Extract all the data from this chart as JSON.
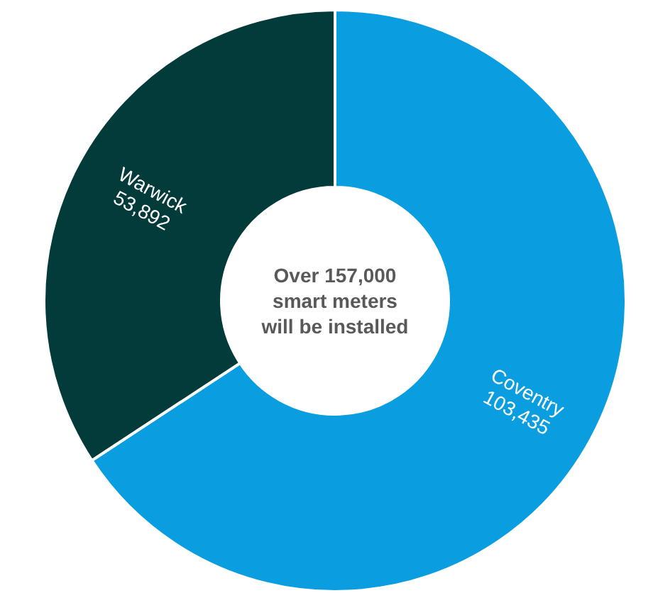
{
  "chart_data": {
    "type": "donut",
    "categories": [
      "Coventry",
      "Warwick"
    ],
    "values": [
      103435,
      53892
    ],
    "colors": [
      "#0a9ee0",
      "#033b3b"
    ],
    "value_labels": [
      "103,435",
      "53,892"
    ],
    "annotations": [
      "Over 157,000 smart meters will be installed"
    ]
  }
}
